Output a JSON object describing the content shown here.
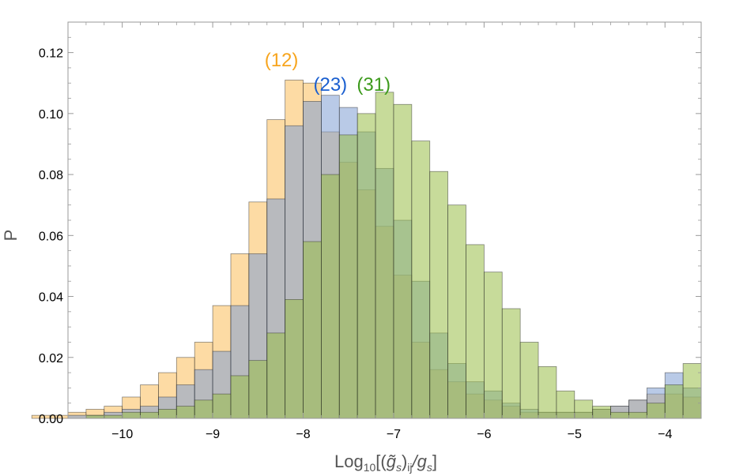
{
  "chart_data": {
    "type": "bar",
    "subtype": "overlapping-histogram",
    "xlim": [
      -10.6,
      -3.6
    ],
    "ylim": [
      0,
      0.13
    ],
    "bin_width": 0.2,
    "bin_starts": [
      -11.0,
      -10.8,
      -10.6,
      -10.4,
      -10.2,
      -10.0,
      -9.8,
      -9.6,
      -9.4,
      -9.2,
      -9.0,
      -8.8,
      -8.6,
      -8.4,
      -8.2,
      -8.0,
      -7.8,
      -7.6,
      -7.4,
      -7.2,
      -7.0,
      -6.8,
      -6.6,
      -6.4,
      -6.2,
      -6.0,
      -5.8,
      -5.6,
      -5.4,
      -5.2,
      -5.0,
      -4.8,
      -4.6,
      -4.4,
      -4.2,
      -4.0,
      -3.8
    ],
    "x_ticks": [
      -10,
      -9,
      -8,
      -7,
      -6,
      -5,
      -4
    ],
    "x_tick_labels": [
      "−10",
      "−9",
      "−8",
      "−7",
      "−6",
      "−5",
      "−4"
    ],
    "y_ticks": [
      0,
      0.02,
      0.04,
      0.06,
      0.08,
      0.1,
      0.12
    ],
    "y_tick_labels": [
      "0.00",
      "0.02",
      "0.04",
      "0.06",
      "0.08",
      "0.10",
      "0.12"
    ],
    "xlabel_parts": {
      "prefix": "Log",
      "sub": "10",
      "bracket_open": "[(",
      "tilde_g": "g̃",
      "s1": "s",
      "close_paren": ")",
      "ij": "ij",
      "slash": "/g",
      "s2": "s",
      "bracket_close": "]"
    },
    "ylabel": "P",
    "grid": false,
    "series": [
      {
        "label": "(12)",
        "color": "#f7a51e",
        "fill": "#fbbe5a",
        "values": [
          0.001,
          0.001,
          0.002,
          0.003,
          0.004,
          0.007,
          0.011,
          0.015,
          0.02,
          0.025,
          0.037,
          0.054,
          0.071,
          0.098,
          0.111,
          0.11,
          0.094,
          0.084,
          0.075,
          0.063,
          0.047,
          0.025,
          0.016,
          0.012,
          0.008,
          0.006,
          0.004,
          0.002,
          0.002,
          0.002,
          0.002,
          0.003,
          0.004,
          0.006,
          0.008,
          0.008,
          0.007
        ]
      },
      {
        "label": "(23)",
        "color": "#1a5fd0",
        "fill": "#7f9fd3",
        "values": [
          0.0,
          0.0,
          0.001,
          0.001,
          0.002,
          0.003,
          0.004,
          0.007,
          0.011,
          0.016,
          0.022,
          0.037,
          0.054,
          0.072,
          0.096,
          0.104,
          0.106,
          0.102,
          0.094,
          0.082,
          0.065,
          0.045,
          0.028,
          0.018,
          0.012,
          0.009,
          0.005,
          0.003,
          0.002,
          0.002,
          0.002,
          0.003,
          0.004,
          0.006,
          0.01,
          0.015,
          0.01
        ]
      },
      {
        "label": "(31)",
        "color": "#3c9a1b",
        "fill": "#99bd47",
        "values": [
          0.0,
          0.0,
          0.0,
          0.001,
          0.001,
          0.002,
          0.002,
          0.003,
          0.004,
          0.006,
          0.008,
          0.014,
          0.019,
          0.028,
          0.039,
          0.058,
          0.08,
          0.093,
          0.1,
          0.107,
          0.103,
          0.091,
          0.081,
          0.07,
          0.057,
          0.048,
          0.036,
          0.025,
          0.017,
          0.009,
          0.006,
          0.004,
          0.002,
          0.002,
          0.005,
          0.011,
          0.018
        ]
      }
    ],
    "annotations": [
      {
        "text": "(12)",
        "color": "#f7a51e",
        "x": -8.24,
        "y": 0.1155
      },
      {
        "text": "(23)",
        "color": "#1a5fd0",
        "x": -7.7,
        "y": 0.1075
      },
      {
        "text": "(31)",
        "color": "#3c9a1b",
        "x": -7.22,
        "y": 0.1075
      }
    ]
  }
}
